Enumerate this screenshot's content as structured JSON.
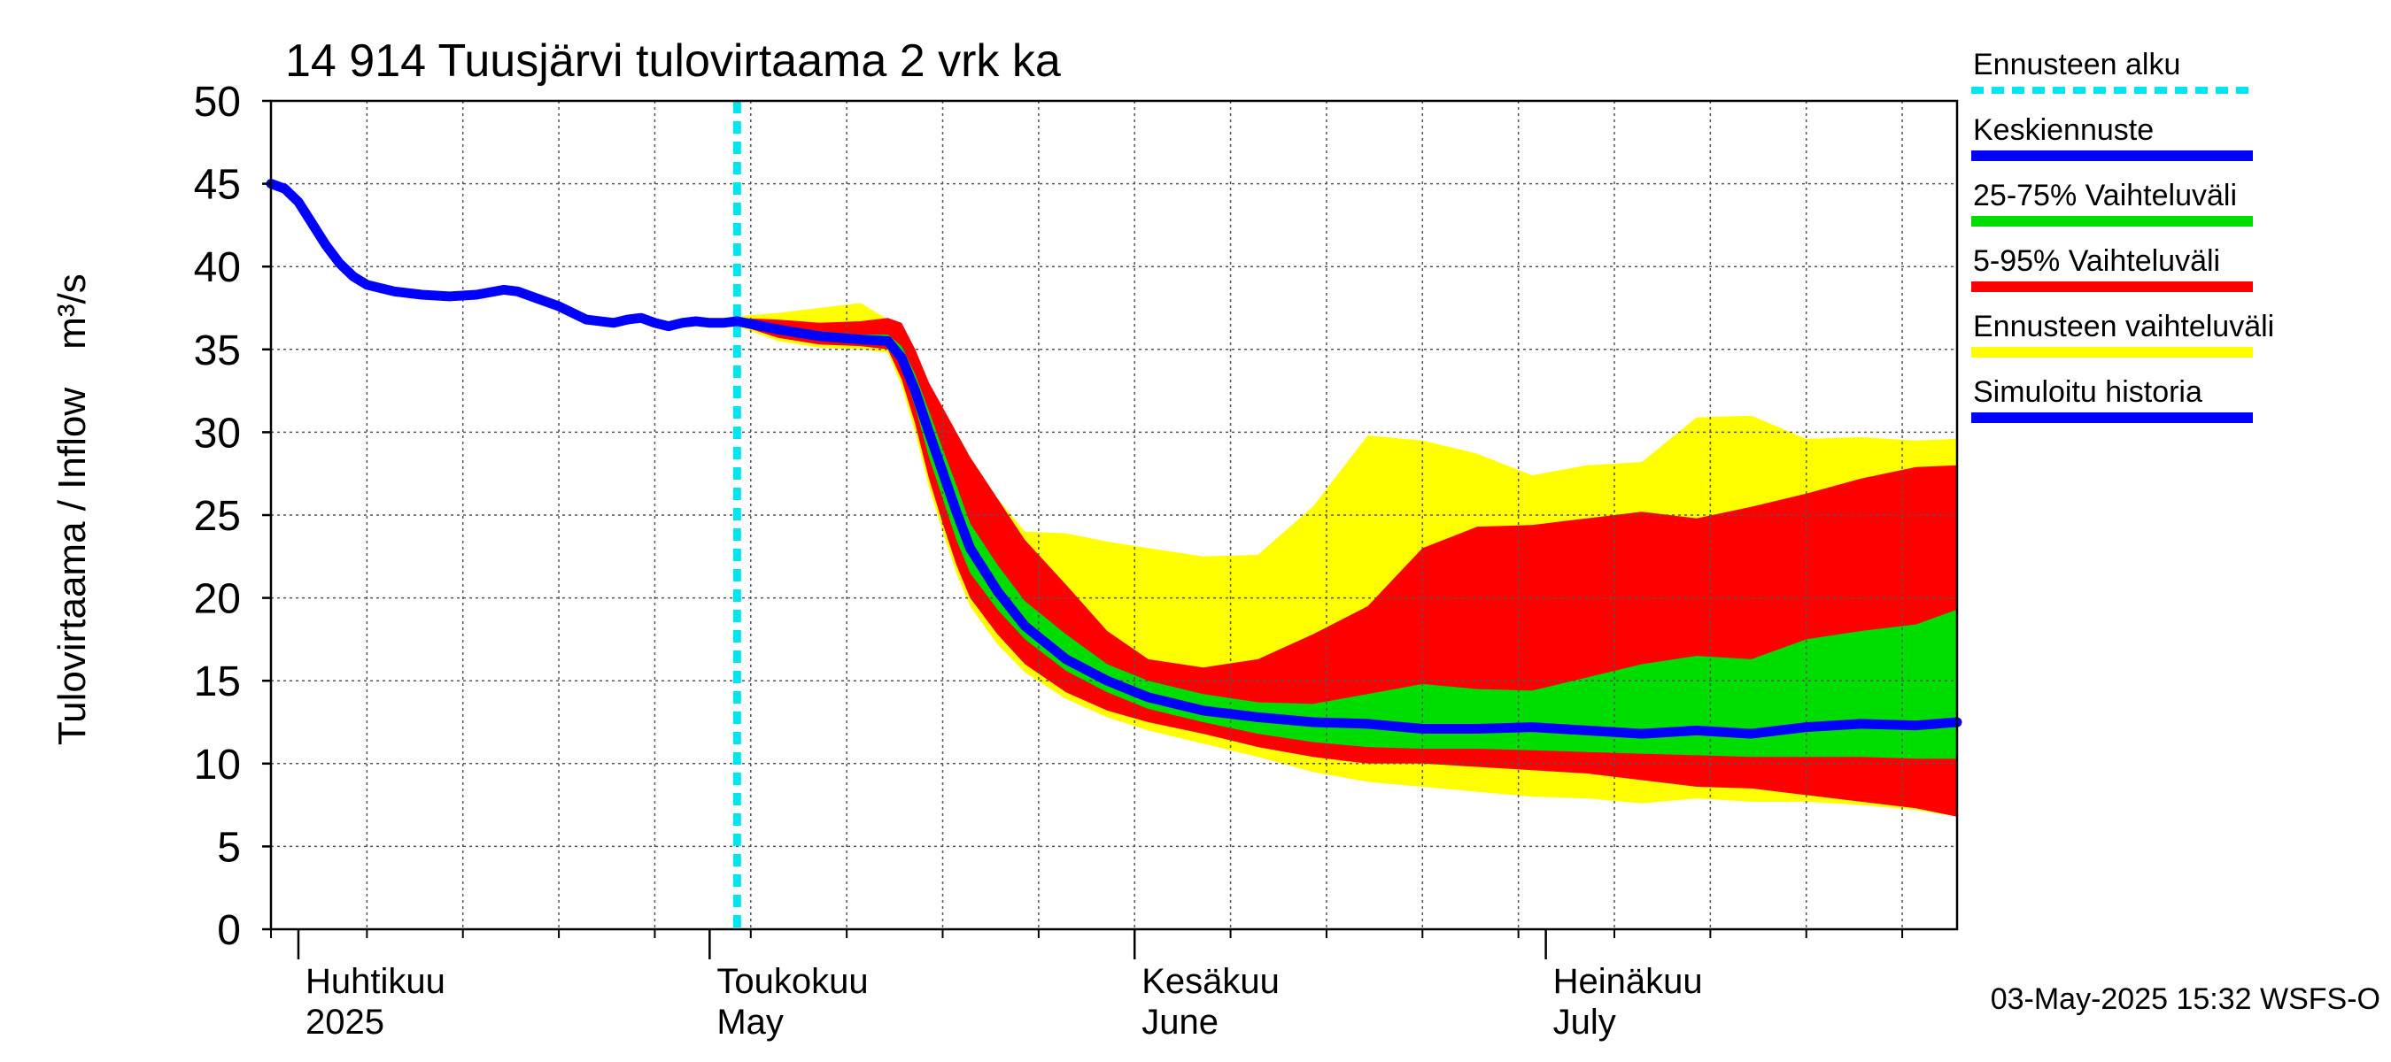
{
  "chart_data": {
    "type": "area",
    "title": "14 914 Tuusjärvi tulovirtaama 2 vrk ka",
    "ylabel": "Tulovirtaama / Inflow",
    "yunit": "m³/s",
    "ylim": [
      0,
      50
    ],
    "yticks": [
      0,
      5,
      10,
      15,
      20,
      25,
      30,
      35,
      40,
      45,
      50
    ],
    "xlim": [
      "2025-03-30",
      "2025-07-31"
    ],
    "month_labels": [
      {
        "fi": "Huhtikuu",
        "en": "2025",
        "date": "2025-04-01"
      },
      {
        "fi": "Toukokuu",
        "en": "May",
        "date": "2025-05-01"
      },
      {
        "fi": "Kesäkuu",
        "en": "June",
        "date": "2025-06-01"
      },
      {
        "fi": "Heinäkuu",
        "en": "July",
        "date": "2025-07-01"
      }
    ],
    "forecast_start": "2025-05-03",
    "footer": "03-May-2025 15:32 WSFS-O",
    "grid": true,
    "legend_position": "right",
    "colors": {
      "forecast_start": "#00e5ee",
      "median": "#0000ff",
      "p25_75": "#00dd00",
      "p5_95": "#ff0000",
      "range": "#ffff00",
      "history": "#0000ff"
    },
    "legend": [
      {
        "key": "forecast_start",
        "label": "Ennusteen alku"
      },
      {
        "key": "median",
        "label": "Keskiennuste"
      },
      {
        "key": "p25_75",
        "label": "25-75% Vaihteluväli"
      },
      {
        "key": "p5_95",
        "label": "5-95% Vaihteluväli"
      },
      {
        "key": "range",
        "label": "Ennusteen vaihteluväli"
      },
      {
        "key": "history",
        "label": "Simuloitu historia"
      }
    ],
    "history": {
      "dates": [
        "2025-03-30",
        "2025-03-31",
        "2025-04-01",
        "2025-04-02",
        "2025-04-03",
        "2025-04-04",
        "2025-04-05",
        "2025-04-06",
        "2025-04-08",
        "2025-04-10",
        "2025-04-12",
        "2025-04-14",
        "2025-04-16",
        "2025-04-17",
        "2025-04-18",
        "2025-04-20",
        "2025-04-22",
        "2025-04-24",
        "2025-04-25",
        "2025-04-26",
        "2025-04-27",
        "2025-04-28",
        "2025-04-29",
        "2025-04-30",
        "2025-05-01",
        "2025-05-02",
        "2025-05-03"
      ],
      "values": [
        45.0,
        44.7,
        43.9,
        42.6,
        41.3,
        40.2,
        39.4,
        38.9,
        38.5,
        38.3,
        38.2,
        38.3,
        38.6,
        38.5,
        38.2,
        37.6,
        36.8,
        36.6,
        36.8,
        36.9,
        36.6,
        36.4,
        36.6,
        36.7,
        36.6,
        36.6,
        36.7
      ]
    },
    "forecast": {
      "dates": [
        "2025-05-03",
        "2025-05-06",
        "2025-05-09",
        "2025-05-12",
        "2025-05-14",
        "2025-05-15",
        "2025-05-16",
        "2025-05-17",
        "2025-05-18",
        "2025-05-19",
        "2025-05-20",
        "2025-05-22",
        "2025-05-24",
        "2025-05-27",
        "2025-05-30",
        "2025-06-02",
        "2025-06-06",
        "2025-06-10",
        "2025-06-14",
        "2025-06-18",
        "2025-06-22",
        "2025-06-26",
        "2025-06-30",
        "2025-07-04",
        "2025-07-08",
        "2025-07-12",
        "2025-07-16",
        "2025-07-20",
        "2025-07-24",
        "2025-07-28",
        "2025-07-31"
      ],
      "median": [
        36.7,
        36.2,
        35.8,
        35.6,
        35.5,
        34.5,
        32.5,
        30.0,
        27.6,
        25.2,
        23.0,
        20.4,
        18.3,
        16.3,
        15.0,
        14.0,
        13.2,
        12.8,
        12.5,
        12.4,
        12.1,
        12.1,
        12.2,
        12.0,
        11.8,
        12.0,
        11.8,
        12.2,
        12.4,
        12.3,
        12.5
      ],
      "p25": [
        36.6,
        36.0,
        35.6,
        35.4,
        35.3,
        34.0,
        31.5,
        28.5,
        26.0,
        23.5,
        21.5,
        19.3,
        17.5,
        15.6,
        14.3,
        13.3,
        12.5,
        11.8,
        11.3,
        11.0,
        10.9,
        10.9,
        10.8,
        10.7,
        10.6,
        10.5,
        10.4,
        10.4,
        10.4,
        10.3,
        10.3
      ],
      "p75": [
        36.8,
        36.4,
        36.1,
        35.9,
        35.9,
        35.2,
        33.5,
        31.3,
        29.0,
        26.8,
        24.5,
        22.0,
        19.8,
        17.8,
        16.0,
        15.0,
        14.2,
        13.7,
        13.6,
        14.2,
        14.8,
        14.5,
        14.4,
        15.2,
        16.0,
        16.5,
        16.3,
        17.5,
        18.0,
        18.4,
        19.3
      ],
      "p5": [
        36.5,
        35.7,
        35.3,
        35.2,
        35.0,
        33.2,
        30.5,
        27.2,
        24.5,
        22.0,
        20.0,
        17.8,
        16.0,
        14.3,
        13.2,
        12.5,
        11.8,
        11.0,
        10.4,
        10.0,
        10.0,
        9.8,
        9.6,
        9.4,
        9.0,
        8.6,
        8.5,
        8.1,
        7.7,
        7.3,
        6.8
      ],
      "p95": [
        36.9,
        36.8,
        36.6,
        36.7,
        36.9,
        36.6,
        35.0,
        33.0,
        31.5,
        30.0,
        28.5,
        26.0,
        23.5,
        20.8,
        18.0,
        16.3,
        15.8,
        16.3,
        17.8,
        19.5,
        23.0,
        24.3,
        24.4,
        24.8,
        25.2,
        24.8,
        25.5,
        26.3,
        27.2,
        27.9,
        28.0
      ],
      "min": [
        36.4,
        35.5,
        35.1,
        35.0,
        34.8,
        32.8,
        30.0,
        26.7,
        24.0,
        21.5,
        19.5,
        17.2,
        15.5,
        13.9,
        12.8,
        12.0,
        11.2,
        10.4,
        9.5,
        8.9,
        8.6,
        8.3,
        8.0,
        7.9,
        7.6,
        7.9,
        7.7,
        7.7,
        7.5,
        7.2,
        6.8
      ],
      "max": [
        37.0,
        37.2,
        37.5,
        37.8,
        36.8,
        34.4,
        32.6,
        32.2,
        31.2,
        29.8,
        28.5,
        26.0,
        24.0,
        23.9,
        23.4,
        23.0,
        22.5,
        22.6,
        25.5,
        29.8,
        29.5,
        28.7,
        27.4,
        28.0,
        28.2,
        30.9,
        31.0,
        29.6,
        29.7,
        29.5,
        29.6
      ]
    }
  }
}
